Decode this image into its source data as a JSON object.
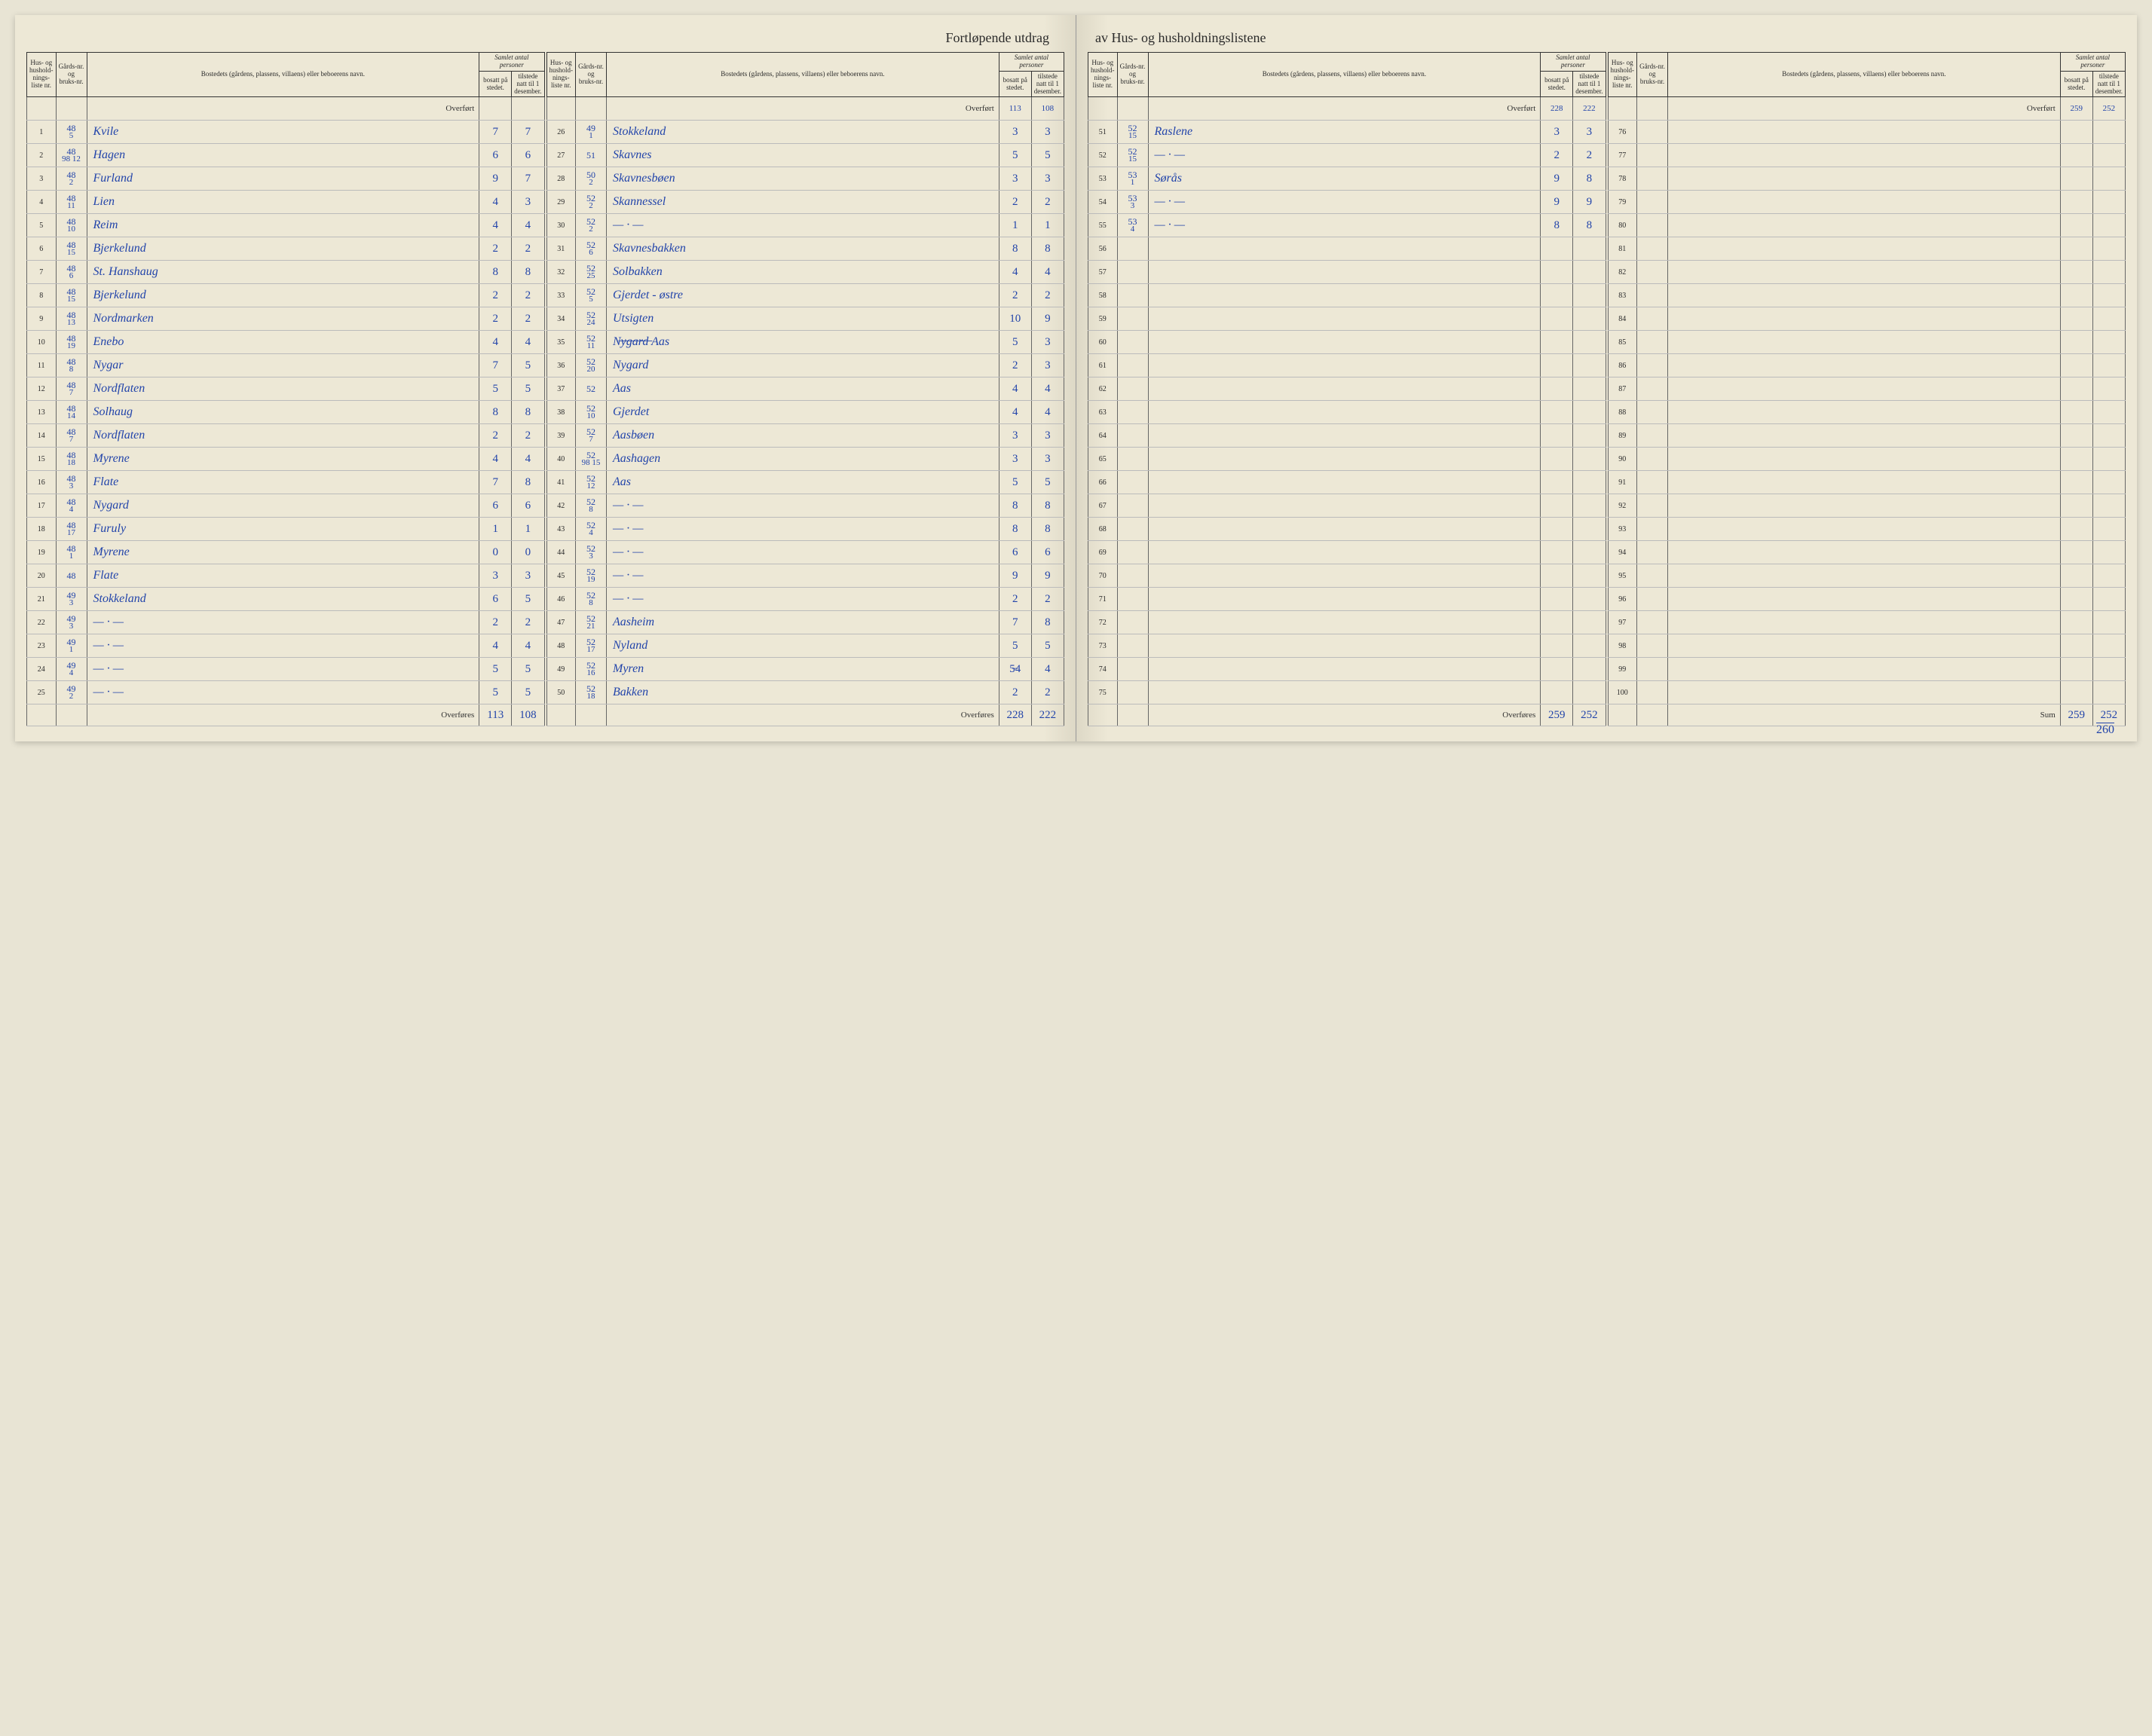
{
  "title_left": "Fortløpende utdrag",
  "title_right": "av Hus- og husholdningslistene",
  "headers": {
    "liste": "Hus- og hushold-nings-liste nr.",
    "gaard": "Gårds-nr. og bruks-nr.",
    "bosted": "Bostedets (gårdens, plassens, villaens) eller beboerens navn.",
    "samlet": "Samlet antal personer",
    "bosatt": "bosatt på stedet.",
    "tilstede": "tilstede natt til 1 desember."
  },
  "overfort": "Overført",
  "overfores": "Overføres",
  "sum": "Sum",
  "footer_page": "260",
  "blocks": [
    {
      "overfort_b": "",
      "overfort_t": "",
      "rows": [
        {
          "n": "1",
          "g1": "48",
          "g2": "5",
          "name": "Kvile",
          "b": "7",
          "t": "7"
        },
        {
          "n": "2",
          "g1": "48",
          "g2": "98 12",
          "name": "Hagen",
          "b": "6",
          "t": "6"
        },
        {
          "n": "3",
          "g1": "48",
          "g2": "2",
          "name": "Furland",
          "b": "9",
          "t": "7"
        },
        {
          "n": "4",
          "g1": "48",
          "g2": "11",
          "name": "Lien",
          "b": "4",
          "t": "3"
        },
        {
          "n": "5",
          "g1": "48",
          "g2": "10",
          "name": "Reim",
          "b": "4",
          "t": "4"
        },
        {
          "n": "6",
          "g1": "48",
          "g2": "15",
          "name": "Bjerkelund",
          "b": "2",
          "t": "2"
        },
        {
          "n": "7",
          "g1": "48",
          "g2": "6",
          "name": "St. Hanshaug",
          "b": "8",
          "t": "8"
        },
        {
          "n": "8",
          "g1": "48",
          "g2": "15",
          "name": "Bjerkelund",
          "b": "2",
          "t": "2"
        },
        {
          "n": "9",
          "g1": "48",
          "g2": "13",
          "name": "Nordmarken",
          "b": "2",
          "t": "2"
        },
        {
          "n": "10",
          "g1": "48",
          "g2": "19",
          "name": "Enebo",
          "b": "4",
          "t": "4"
        },
        {
          "n": "11",
          "g1": "48",
          "g2": "8",
          "name": "Nygar",
          "b": "7",
          "t": "5"
        },
        {
          "n": "12",
          "g1": "48",
          "g2": "7",
          "name": "Nordflaten",
          "b": "5",
          "t": "5"
        },
        {
          "n": "13",
          "g1": "48",
          "g2": "14",
          "name": "Solhaug",
          "b": "8",
          "t": "8"
        },
        {
          "n": "14",
          "g1": "48",
          "g2": "7",
          "name": "Nordflaten",
          "b": "2",
          "t": "2"
        },
        {
          "n": "15",
          "g1": "48",
          "g2": "18",
          "name": "Myrene",
          "b": "4",
          "t": "4"
        },
        {
          "n": "16",
          "g1": "48",
          "g2": "3",
          "name": "Flate",
          "b": "7",
          "t": "8"
        },
        {
          "n": "17",
          "g1": "48",
          "g2": "4",
          "name": "Nygard",
          "b": "6",
          "t": "6"
        },
        {
          "n": "18",
          "g1": "48",
          "g2": "17",
          "name": "Furuly",
          "b": "1",
          "t": "1"
        },
        {
          "n": "19",
          "g1": "48",
          "g2": "1",
          "name": "Myrene",
          "b": "0",
          "t": "0"
        },
        {
          "n": "20",
          "g1": "48",
          "g2": "",
          "name": "Flate",
          "b": "3",
          "t": "3"
        },
        {
          "n": "21",
          "g1": "49",
          "g2": "3",
          "name": "Stokkeland",
          "b": "6",
          "t": "5"
        },
        {
          "n": "22",
          "g1": "49",
          "g2": "3",
          "name": "— · —",
          "b": "2",
          "t": "2"
        },
        {
          "n": "23",
          "g1": "49",
          "g2": "1",
          "name": "— · —",
          "b": "4",
          "t": "4"
        },
        {
          "n": "24",
          "g1": "49",
          "g2": "4",
          "name": "— · —",
          "b": "5",
          "t": "5"
        },
        {
          "n": "25",
          "g1": "49",
          "g2": "2",
          "name": "— · —",
          "b": "5",
          "t": "5"
        }
      ],
      "overfores_b": "113",
      "overfores_t": "108"
    },
    {
      "overfort_b": "113",
      "overfort_t": "108",
      "rows": [
        {
          "n": "26",
          "g1": "49",
          "g2": "1",
          "name": "Stokkeland",
          "b": "3",
          "t": "3"
        },
        {
          "n": "27",
          "g1": "51",
          "g2": "",
          "name": "Skavnes",
          "b": "5",
          "t": "5"
        },
        {
          "n": "28",
          "g1": "50",
          "g2": "2",
          "name": "Skavnesbøen",
          "b": "3",
          "t": "3"
        },
        {
          "n": "29",
          "g1": "52",
          "g2": "2",
          "name": "Skannessel",
          "b": "2",
          "t": "2"
        },
        {
          "n": "30",
          "g1": "52",
          "g2": "2",
          "name": "— · —",
          "b": "1",
          "t": "1"
        },
        {
          "n": "31",
          "g1": "52",
          "g2": "6",
          "name": "Skavnesbakken",
          "b": "8",
          "t": "8"
        },
        {
          "n": "32",
          "g1": "52",
          "g2": "25",
          "name": "Solbakken",
          "b": "4",
          "t": "4"
        },
        {
          "n": "33",
          "g1": "52",
          "g2": "5",
          "name": "Gjerdet - østre",
          "b": "2",
          "t": "2"
        },
        {
          "n": "34",
          "g1": "52",
          "g2": "24",
          "name": "Utsigten",
          "b": "10",
          "t": "9"
        },
        {
          "n": "35",
          "g1": "52",
          "g2": "11",
          "name": "N̶y̶g̶a̶r̶d̶  Aas",
          "b": "5",
          "t": "3"
        },
        {
          "n": "36",
          "g1": "52",
          "g2": "20",
          "name": "Nygard",
          "b": "2",
          "t": "3"
        },
        {
          "n": "37",
          "g1": "52",
          "g2": "",
          "name": "Aas",
          "b": "4",
          "t": "4"
        },
        {
          "n": "38",
          "g1": "52",
          "g2": "10",
          "name": "Gjerdet",
          "b": "4",
          "t": "4"
        },
        {
          "n": "39",
          "g1": "52",
          "g2": "7",
          "name": "Aasbøen",
          "b": "3",
          "t": "3"
        },
        {
          "n": "40",
          "g1": "52",
          "g2": "98 15",
          "name": "Aashagen",
          "b": "3",
          "t": "3"
        },
        {
          "n": "41",
          "g1": "52",
          "g2": "12",
          "name": "Aas",
          "b": "5",
          "t": "5"
        },
        {
          "n": "42",
          "g1": "52",
          "g2": "8",
          "name": "— · —",
          "b": "8",
          "t": "8"
        },
        {
          "n": "43",
          "g1": "52",
          "g2": "4",
          "name": "— · —",
          "b": "8",
          "t": "8"
        },
        {
          "n": "44",
          "g1": "52",
          "g2": "3",
          "name": "— · —",
          "b": "6",
          "t": "6"
        },
        {
          "n": "45",
          "g1": "52",
          "g2": "19",
          "name": "— · —",
          "b": "9",
          "t": "9"
        },
        {
          "n": "46",
          "g1": "52",
          "g2": "8",
          "name": "— · —",
          "b": "2",
          "t": "2"
        },
        {
          "n": "47",
          "g1": "52",
          "g2": "21",
          "name": "Aasheim",
          "b": "7",
          "t": "8"
        },
        {
          "n": "48",
          "g1": "52",
          "g2": "17",
          "name": "Nyland",
          "b": "5",
          "t": "5"
        },
        {
          "n": "49",
          "g1": "52",
          "g2": "16",
          "name": "Myren",
          "b": "5̶4",
          "t": "4"
        },
        {
          "n": "50",
          "g1": "52",
          "g2": "18",
          "name": "Bakken",
          "b": "2",
          "t": "2"
        }
      ],
      "overfores_b": "228",
      "overfores_t": "222"
    },
    {
      "overfort_b": "228",
      "overfort_t": "222",
      "rows": [
        {
          "n": "51",
          "g1": "52",
          "g2": "15",
          "name": "Raslene",
          "b": "3",
          "t": "3"
        },
        {
          "n": "52",
          "g1": "52",
          "g2": "15",
          "name": "— · —",
          "b": "2",
          "t": "2"
        },
        {
          "n": "53",
          "g1": "53",
          "g2": "1",
          "name": "Sørås",
          "b": "9",
          "t": "8"
        },
        {
          "n": "54",
          "g1": "53",
          "g2": "3",
          "name": "— · —",
          "b": "9",
          "t": "9"
        },
        {
          "n": "55",
          "g1": "53",
          "g2": "4",
          "name": "— · —",
          "b": "8",
          "t": "8"
        },
        {
          "n": "56",
          "g1": "",
          "g2": "",
          "name": "",
          "b": "",
          "t": ""
        },
        {
          "n": "57",
          "g1": "",
          "g2": "",
          "name": "",
          "b": "",
          "t": ""
        },
        {
          "n": "58",
          "g1": "",
          "g2": "",
          "name": "",
          "b": "",
          "t": ""
        },
        {
          "n": "59",
          "g1": "",
          "g2": "",
          "name": "",
          "b": "",
          "t": ""
        },
        {
          "n": "60",
          "g1": "",
          "g2": "",
          "name": "",
          "b": "",
          "t": ""
        },
        {
          "n": "61",
          "g1": "",
          "g2": "",
          "name": "",
          "b": "",
          "t": ""
        },
        {
          "n": "62",
          "g1": "",
          "g2": "",
          "name": "",
          "b": "",
          "t": ""
        },
        {
          "n": "63",
          "g1": "",
          "g2": "",
          "name": "",
          "b": "",
          "t": ""
        },
        {
          "n": "64",
          "g1": "",
          "g2": "",
          "name": "",
          "b": "",
          "t": ""
        },
        {
          "n": "65",
          "g1": "",
          "g2": "",
          "name": "",
          "b": "",
          "t": ""
        },
        {
          "n": "66",
          "g1": "",
          "g2": "",
          "name": "",
          "b": "",
          "t": ""
        },
        {
          "n": "67",
          "g1": "",
          "g2": "",
          "name": "",
          "b": "",
          "t": ""
        },
        {
          "n": "68",
          "g1": "",
          "g2": "",
          "name": "",
          "b": "",
          "t": ""
        },
        {
          "n": "69",
          "g1": "",
          "g2": "",
          "name": "",
          "b": "",
          "t": ""
        },
        {
          "n": "70",
          "g1": "",
          "g2": "",
          "name": "",
          "b": "",
          "t": ""
        },
        {
          "n": "71",
          "g1": "",
          "g2": "",
          "name": "",
          "b": "",
          "t": ""
        },
        {
          "n": "72",
          "g1": "",
          "g2": "",
          "name": "",
          "b": "",
          "t": ""
        },
        {
          "n": "73",
          "g1": "",
          "g2": "",
          "name": "",
          "b": "",
          "t": ""
        },
        {
          "n": "74",
          "g1": "",
          "g2": "",
          "name": "",
          "b": "",
          "t": ""
        },
        {
          "n": "75",
          "g1": "",
          "g2": "",
          "name": "",
          "b": "",
          "t": ""
        }
      ],
      "overfores_b": "259",
      "overfores_t": "252"
    },
    {
      "overfort_b": "259",
      "overfort_t": "252",
      "rows": [
        {
          "n": "76",
          "g1": "",
          "g2": "",
          "name": "",
          "b": "",
          "t": ""
        },
        {
          "n": "77",
          "g1": "",
          "g2": "",
          "name": "",
          "b": "",
          "t": ""
        },
        {
          "n": "78",
          "g1": "",
          "g2": "",
          "name": "",
          "b": "",
          "t": ""
        },
        {
          "n": "79",
          "g1": "",
          "g2": "",
          "name": "",
          "b": "",
          "t": ""
        },
        {
          "n": "80",
          "g1": "",
          "g2": "",
          "name": "",
          "b": "",
          "t": ""
        },
        {
          "n": "81",
          "g1": "",
          "g2": "",
          "name": "",
          "b": "",
          "t": ""
        },
        {
          "n": "82",
          "g1": "",
          "g2": "",
          "name": "",
          "b": "",
          "t": ""
        },
        {
          "n": "83",
          "g1": "",
          "g2": "",
          "name": "",
          "b": "",
          "t": ""
        },
        {
          "n": "84",
          "g1": "",
          "g2": "",
          "name": "",
          "b": "",
          "t": ""
        },
        {
          "n": "85",
          "g1": "",
          "g2": "",
          "name": "",
          "b": "",
          "t": ""
        },
        {
          "n": "86",
          "g1": "",
          "g2": "",
          "name": "",
          "b": "",
          "t": ""
        },
        {
          "n": "87",
          "g1": "",
          "g2": "",
          "name": "",
          "b": "",
          "t": ""
        },
        {
          "n": "88",
          "g1": "",
          "g2": "",
          "name": "",
          "b": "",
          "t": ""
        },
        {
          "n": "89",
          "g1": "",
          "g2": "",
          "name": "",
          "b": "",
          "t": ""
        },
        {
          "n": "90",
          "g1": "",
          "g2": "",
          "name": "",
          "b": "",
          "t": ""
        },
        {
          "n": "91",
          "g1": "",
          "g2": "",
          "name": "",
          "b": "",
          "t": ""
        },
        {
          "n": "92",
          "g1": "",
          "g2": "",
          "name": "",
          "b": "",
          "t": ""
        },
        {
          "n": "93",
          "g1": "",
          "g2": "",
          "name": "",
          "b": "",
          "t": ""
        },
        {
          "n": "94",
          "g1": "",
          "g2": "",
          "name": "",
          "b": "",
          "t": ""
        },
        {
          "n": "95",
          "g1": "",
          "g2": "",
          "name": "",
          "b": "",
          "t": ""
        },
        {
          "n": "96",
          "g1": "",
          "g2": "",
          "name": "",
          "b": "",
          "t": ""
        },
        {
          "n": "97",
          "g1": "",
          "g2": "",
          "name": "",
          "b": "",
          "t": ""
        },
        {
          "n": "98",
          "g1": "",
          "g2": "",
          "name": "",
          "b": "",
          "t": ""
        },
        {
          "n": "99",
          "g1": "",
          "g2": "",
          "name": "",
          "b": "",
          "t": ""
        },
        {
          "n": "100",
          "g1": "",
          "g2": "",
          "name": "",
          "b": "",
          "t": ""
        }
      ],
      "overfores_label": "Sum",
      "overfores_b": "259",
      "overfores_t": "252"
    }
  ]
}
